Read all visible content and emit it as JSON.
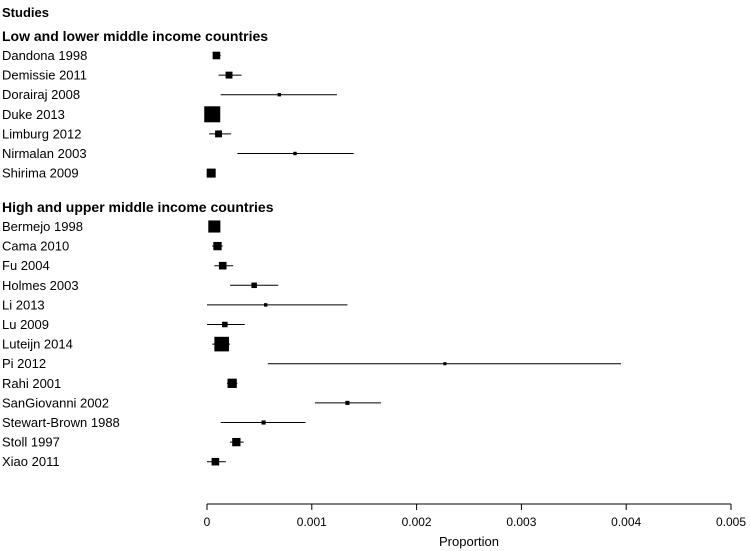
{
  "chart_data": {
    "type": "forest",
    "title": "Studies",
    "xlabel": "Proportion",
    "xlim": [
      0,
      0.005
    ],
    "xticks": [
      "0",
      "0.001",
      "0.002",
      "0.003",
      "0.004",
      "0.005"
    ],
    "xtick_values": [
      0,
      0.001,
      0.002,
      0.003,
      0.004,
      0.005
    ],
    "groups": [
      {
        "name": "Low and lower middle income countries",
        "studies": [
          {
            "label": "Dandona  1998",
            "est": 9e-05,
            "lo": 6e-05,
            "hi": 0.00013,
            "weight": 0.4
          },
          {
            "label": "Demissie  2011",
            "est": 0.00021,
            "lo": 0.00011,
            "hi": 0.00033,
            "weight": 0.35
          },
          {
            "label": "Dorairaj  2008",
            "est": 0.00069,
            "lo": 0.00013,
            "hi": 0.00124,
            "weight": 0.1
          },
          {
            "label": "Duke  2013",
            "est": 5e-05,
            "lo": 0.0,
            "hi": 9e-05,
            "weight": 1.0
          },
          {
            "label": "Limburg  2012",
            "est": 0.00011,
            "lo": 2e-05,
            "hi": 0.00023,
            "weight": 0.35
          },
          {
            "label": "Nirmalan  2003",
            "est": 0.00084,
            "lo": 0.00029,
            "hi": 0.0014,
            "weight": 0.1
          },
          {
            "label": "Shirima  2009",
            "est": 4e-05,
            "lo": 2e-05,
            "hi": 7e-05,
            "weight": 0.5
          }
        ]
      },
      {
        "name": "High and upper middle income countries",
        "studies": [
          {
            "label": "Bermejo  1998",
            "est": 7e-05,
            "lo": 2e-05,
            "hi": 0.00012,
            "weight": 0.72
          },
          {
            "label": "Cama  2010",
            "est": 0.0001,
            "lo": 5e-05,
            "hi": 0.00015,
            "weight": 0.45
          },
          {
            "label": "Fu  2004",
            "est": 0.00015,
            "lo": 7e-05,
            "hi": 0.00025,
            "weight": 0.4
          },
          {
            "label": "Holmes  2003",
            "est": 0.00045,
            "lo": 0.00022,
            "hi": 0.00068,
            "weight": 0.25
          },
          {
            "label": "Li  2013",
            "est": 0.00056,
            "lo": 0.0,
            "hi": 0.00134,
            "weight": 0.1
          },
          {
            "label": "Lu  2009",
            "est": 0.00017,
            "lo": 0.0,
            "hi": 0.00036,
            "weight": 0.25
          },
          {
            "label": "Luteijn  2014",
            "est": 0.00014,
            "lo": 5e-05,
            "hi": 0.00022,
            "weight": 0.9
          },
          {
            "label": "Pi  2012",
            "est": 0.00227,
            "lo": 0.00058,
            "hi": 0.00395,
            "weight": 0.08
          },
          {
            "label": "Rahi  2001",
            "est": 0.00024,
            "lo": 0.00019,
            "hi": 0.00029,
            "weight": 0.52
          },
          {
            "label": "SanGiovanni  2002",
            "est": 0.00134,
            "lo": 0.00103,
            "hi": 0.00166,
            "weight": 0.15
          },
          {
            "label": "Stewart-Brown  1988",
            "est": 0.00054,
            "lo": 0.00013,
            "hi": 0.00094,
            "weight": 0.15
          },
          {
            "label": "Stoll  1997",
            "est": 0.00028,
            "lo": 0.00022,
            "hi": 0.00035,
            "weight": 0.45
          },
          {
            "label": "Xiao  2011",
            "est": 8e-05,
            "lo": 0.0,
            "hi": 0.00018,
            "weight": 0.4
          }
        ]
      }
    ]
  }
}
